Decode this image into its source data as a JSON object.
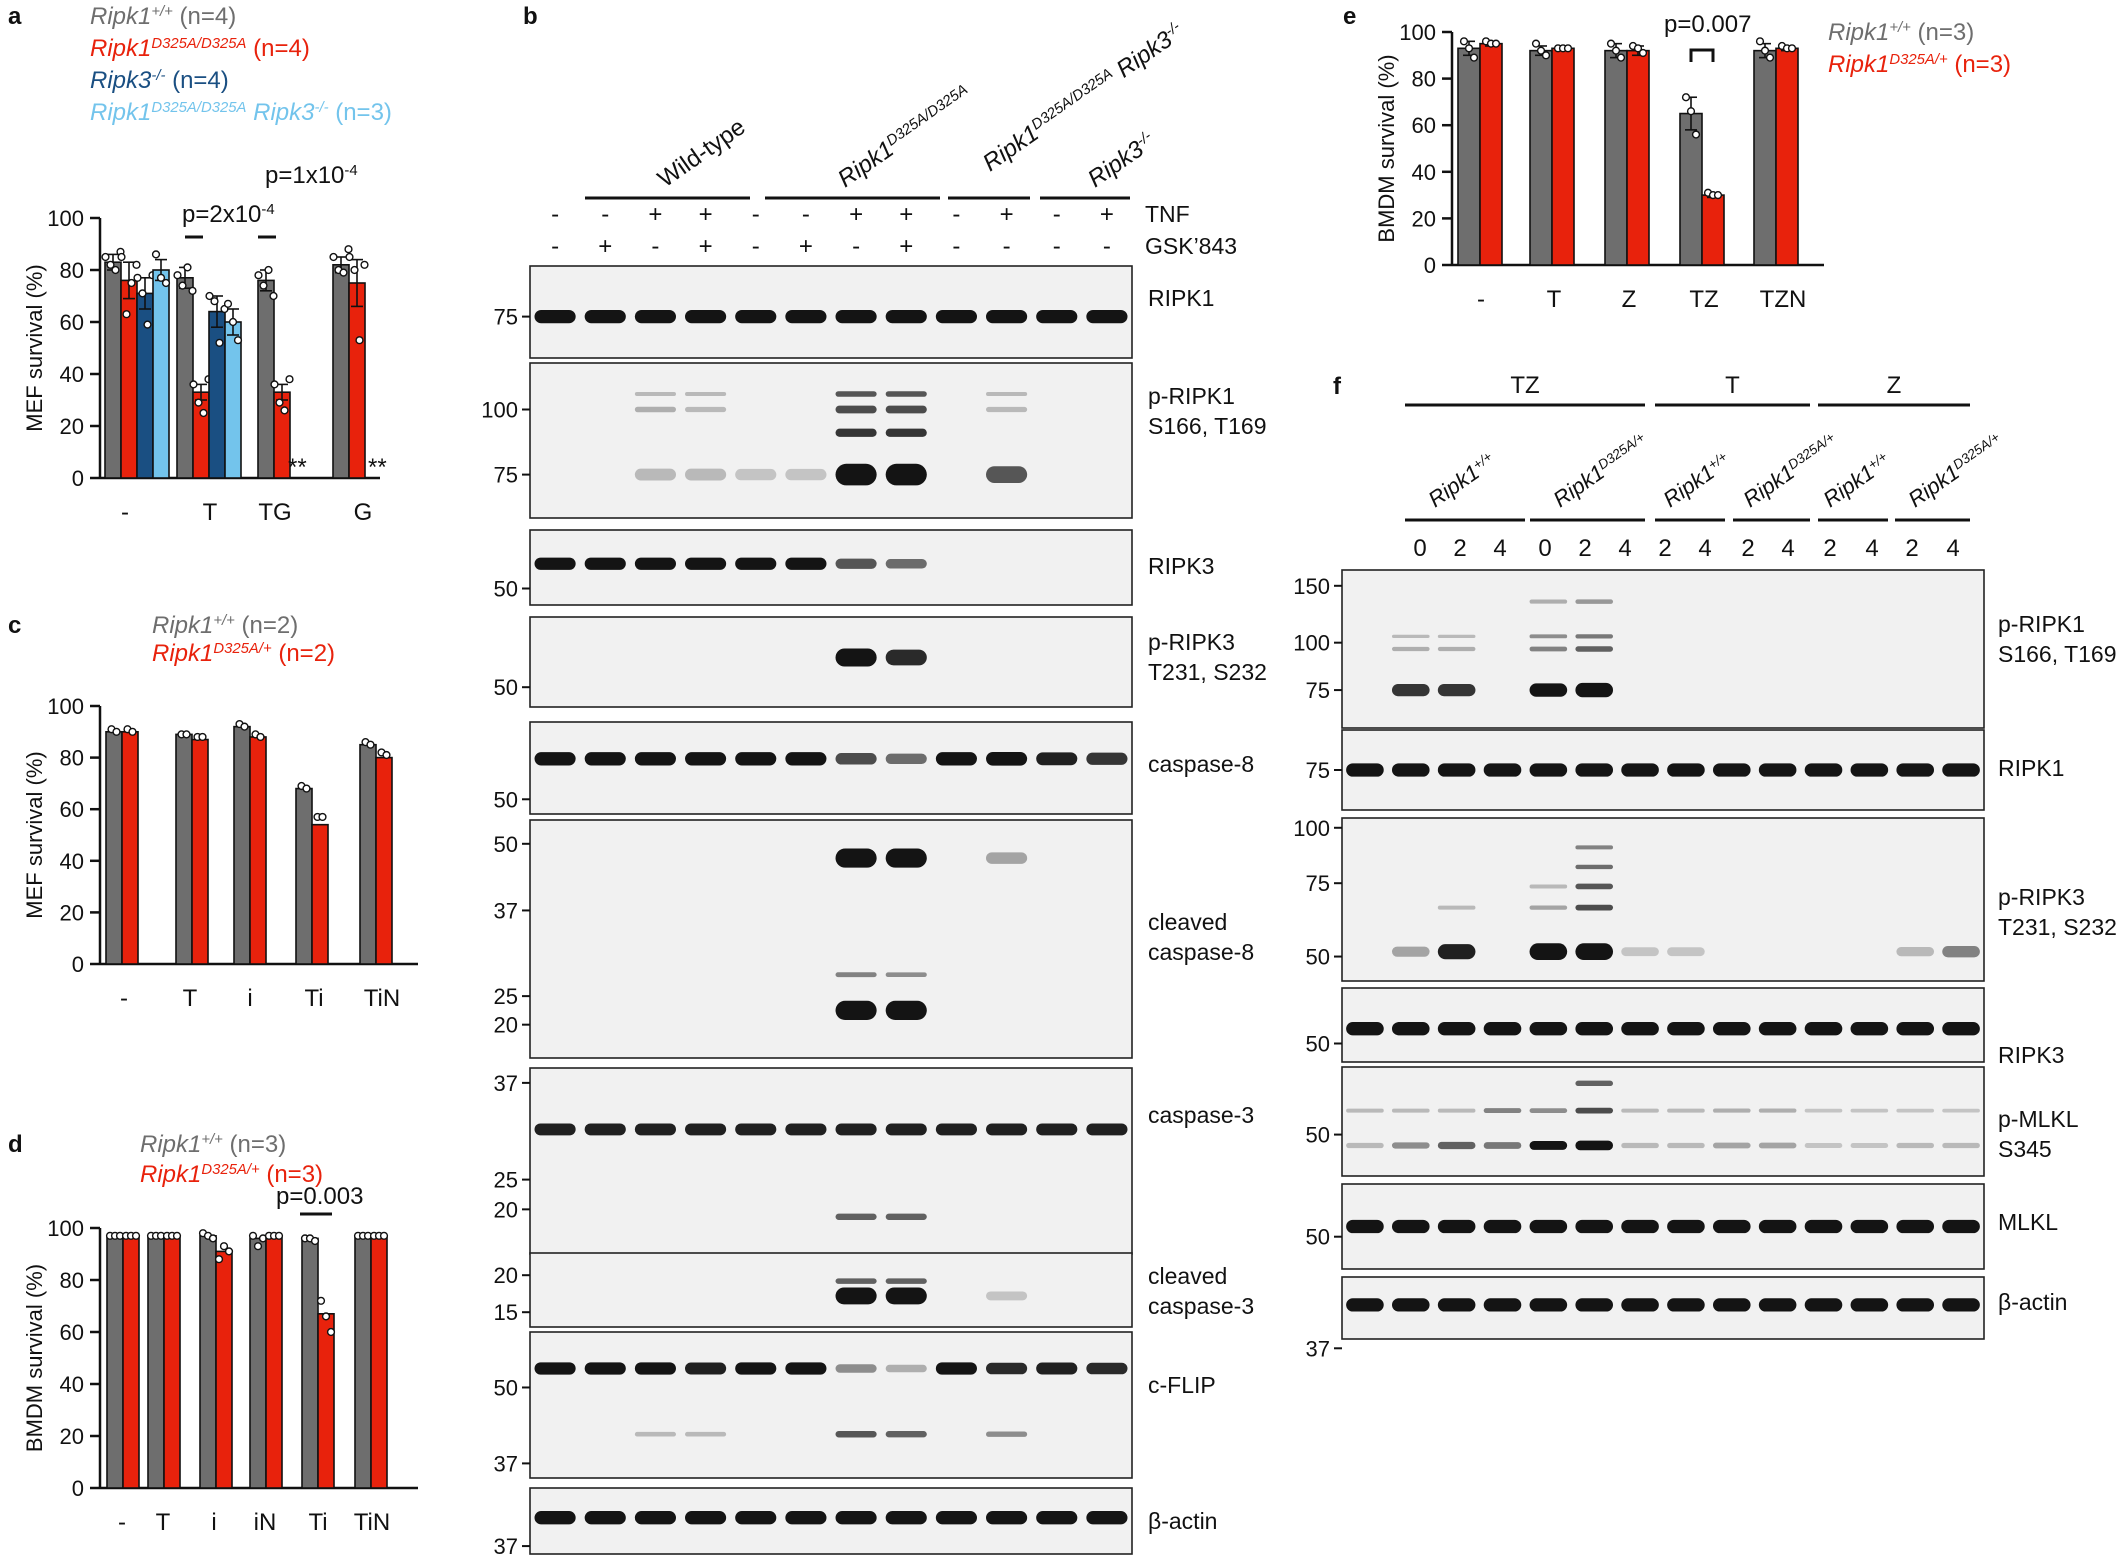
{
  "colors": {
    "wt": "#6e6e6e",
    "red": "#e8220c",
    "blue": "#1a4f82",
    "lightblue": "#73c4ec",
    "text": "#111111",
    "blot_bg": "#f1f1f1",
    "band": "#141414"
  },
  "panels": {
    "a": "a",
    "b": "b",
    "c": "c",
    "d": "d",
    "e": "e",
    "f": "f"
  },
  "chart_data": [
    {
      "id": "a",
      "type": "bar",
      "ylabel": "MEF survival (%)",
      "ylim": [
        0,
        100
      ],
      "yticks": [
        0,
        20,
        40,
        60,
        80,
        100
      ],
      "categories": [
        "-",
        "T",
        "TG",
        "G"
      ],
      "legend": [
        {
          "gene": "Ripk1",
          "sup": "+/+",
          "n": "(n=4)",
          "color": "wt"
        },
        {
          "gene": "Ripk1",
          "sup": "D325A/D325A",
          "n": "(n=4)",
          "color": "red"
        },
        {
          "gene": "Ripk3",
          "sup": "-/-",
          "n": "(n=4)",
          "color": "blue"
        },
        {
          "gene": "Ripk1",
          "sup": "D325A/D325A",
          "gene2": "Ripk3",
          "sup2": "-/-",
          "n": "(n=3)",
          "color": "lightblue"
        }
      ],
      "series": [
        {
          "name": "Ripk1+/+",
          "color": "wt",
          "values": [
            83,
            77,
            76,
            82
          ],
          "err": [
            3,
            4,
            4,
            3
          ],
          "points": [
            [
              85,
              82,
              80,
              87
            ],
            [
              78,
              74,
              81,
              72
            ],
            [
              78,
              74,
              80,
              70
            ],
            [
              85,
              80,
              79,
              88
            ]
          ]
        },
        {
          "name": "Ripk1 D325A/D325A",
          "color": "red",
          "values": [
            76,
            33,
            33,
            75
          ],
          "err": [
            7,
            3,
            3,
            9
          ],
          "points": [
            [
              85,
              63,
              75,
              82
            ],
            [
              36,
              29,
              25,
              38
            ],
            [
              36,
              29,
              26,
              38
            ],
            [
              85,
              80,
              53,
              82
            ]
          ]
        },
        {
          "name": "Ripk3-/-",
          "color": "blue",
          "values": [
            71,
            null,
            null,
            null
          ],
          "err": [
            6,
            null,
            null,
            null
          ],
          "points": [
            [
              77,
              71,
              59,
              78
            ],
            [],
            [],
            []
          ]
        },
        {
          "name": "Ripk1 D325A/D325A Ripk3-/-",
          "color": "lightblue",
          "values": [
            80,
            null,
            null,
            null
          ],
          "err": [
            4,
            null,
            null,
            null
          ],
          "points": [
            [
              86,
              77,
              75
            ],
            [],
            [],
            []
          ]
        }
      ],
      "extra_bars": [
        {
          "name": "Ripk3-/- T",
          "color": "blue",
          "value": 64,
          "err": 6,
          "points": [
            70,
            68,
            52,
            65
          ]
        },
        {
          "name": "DKO T",
          "color": "lightblue",
          "value": 60,
          "err": 5,
          "points": [
            67,
            60,
            53
          ]
        }
      ],
      "annotations": [
        {
          "text": "p=2x10",
          "sup": "-4",
          "between": "T"
        },
        {
          "text": "p=1x10",
          "sup": "-4",
          "between": "TG"
        },
        {
          "text": "**",
          "at": "TG"
        },
        {
          "text": "**",
          "at": "G"
        }
      ]
    },
    {
      "id": "c",
      "type": "bar",
      "ylabel": "MEF survival (%)",
      "ylim": [
        0,
        100
      ],
      "yticks": [
        0,
        20,
        40,
        60,
        80,
        100
      ],
      "categories": [
        "-",
        "T",
        "i",
        "Ti",
        "TiN"
      ],
      "legend": [
        {
          "gene": "Ripk1",
          "sup": "+/+",
          "n": "(n=2)",
          "color": "wt"
        },
        {
          "gene": "Ripk1",
          "sup": "D325A/+",
          "n": "(n=2)",
          "color": "red"
        }
      ],
      "series": [
        {
          "name": "Ripk1+/+",
          "color": "wt",
          "values": [
            90,
            89,
            92,
            68,
            85
          ],
          "points": [
            [
              91,
              90
            ],
            [
              89,
              89
            ],
            [
              93,
              92
            ],
            [
              69,
              68
            ],
            [
              86,
              85
            ]
          ]
        },
        {
          "name": "Ripk1 D325A/+",
          "color": "red",
          "values": [
            90,
            87,
            88,
            54,
            80
          ],
          "points": [
            [
              91,
              90
            ],
            [
              88,
              88
            ],
            [
              89,
              88
            ],
            [
              57,
              57
            ],
            [
              82,
              81
            ]
          ]
        }
      ]
    },
    {
      "id": "d",
      "type": "bar",
      "ylabel": "BMDM survival (%)",
      "ylim": [
        0,
        100
      ],
      "yticks": [
        0,
        20,
        40,
        60,
        80,
        100
      ],
      "categories": [
        "-",
        "T",
        "i",
        "iN",
        "Ti",
        "TiN"
      ],
      "legend": [
        {
          "gene": "Ripk1",
          "sup": "+/+",
          "n": "(n=3)",
          "color": "wt"
        },
        {
          "gene": "Ripk1",
          "sup": "D325A/+",
          "n": "(n=3)",
          "color": "red"
        }
      ],
      "series": [
        {
          "name": "Ripk1+/+",
          "color": "wt",
          "values": [
            97,
            97,
            97,
            96,
            96,
            97
          ],
          "points": [
            [
              97,
              97,
              97
            ],
            [
              97,
              97,
              97
            ],
            [
              98,
              97,
              96
            ],
            [
              97,
              93,
              96
            ],
            [
              96,
              96,
              95
            ],
            [
              97,
              97,
              97
            ]
          ]
        },
        {
          "name": "Ripk1 D325A/+",
          "color": "red",
          "values": [
            97,
            97,
            91,
            97,
            67,
            97
          ],
          "points": [
            [
              97,
              97,
              97
            ],
            [
              97,
              97,
              97
            ],
            [
              88,
              93,
              91
            ],
            [
              97,
              97,
              97
            ],
            [
              72,
              66,
              60
            ],
            [
              97,
              97,
              97
            ]
          ]
        }
      ],
      "annotations": [
        {
          "text": "p=0.003",
          "between": "Ti"
        }
      ]
    },
    {
      "id": "e",
      "type": "bar",
      "ylabel": "BMDM survival (%)",
      "ylim": [
        0,
        100
      ],
      "yticks": [
        0,
        20,
        40,
        60,
        80,
        100
      ],
      "categories": [
        "-",
        "T",
        "Z",
        "TZ",
        "TZN"
      ],
      "legend": [
        {
          "gene": "Ripk1",
          "sup": "+/+",
          "n": "(n=3)",
          "color": "wt"
        },
        {
          "gene": "Ripk1",
          "sup": "D325A/+",
          "n": "(n=3)",
          "color": "red"
        }
      ],
      "series": [
        {
          "name": "Ripk1+/+",
          "color": "wt",
          "values": [
            93,
            92,
            92,
            65,
            92
          ],
          "err": [
            3,
            2,
            3,
            7,
            3
          ],
          "points": [
            [
              96,
              93,
              89
            ],
            [
              95,
              92,
              90
            ],
            [
              95,
              92,
              89
            ],
            [
              72,
              66,
              56
            ],
            [
              96,
              92,
              89
            ]
          ]
        },
        {
          "name": "Ripk1 D325A/+",
          "color": "red",
          "values": [
            95,
            93,
            92,
            30,
            93
          ],
          "err": [
            1,
            1,
            2,
            1,
            1
          ],
          "points": [
            [
              96,
              95,
              95
            ],
            [
              93,
              93,
              93
            ],
            [
              94,
              93,
              91
            ],
            [
              31,
              30,
              30
            ],
            [
              94,
              93,
              93
            ]
          ]
        }
      ],
      "annotations": [
        {
          "text": "p=0.007",
          "between": "TZ"
        }
      ]
    }
  ],
  "blot_b": {
    "headers": [
      {
        "text": "Wild-type"
      },
      {
        "text": "Ripk1",
        "sup": "D325A/D325A"
      },
      {
        "text": "Ripk1",
        "sup": "D325A/D325A",
        "text2": " Ripk3",
        "sup2": "-/-"
      },
      {
        "text": "Ripk3",
        "sup": "-/-"
      }
    ],
    "tnf_label": "TNF",
    "gsk_label": "GSK’843",
    "tnf": [
      "-",
      "-",
      "+",
      "+",
      "-",
      "-",
      "+",
      "+",
      "-",
      "+",
      "-",
      "+"
    ],
    "gsk": [
      "-",
      "+",
      "-",
      "+",
      "-",
      "+",
      "-",
      "+",
      "-",
      "-",
      "-",
      "-"
    ],
    "panels": [
      {
        "label": "RIPK1",
        "markers": [
          "75"
        ],
        "mw_pos": [
          0.55
        ]
      },
      {
        "label": "p-RIPK1\nS166, T169",
        "markers": [
          "100",
          "75"
        ],
        "mw_pos": [
          0.3,
          0.72
        ]
      },
      {
        "label": "RIPK3",
        "markers": [
          "50"
        ],
        "mw_pos": [
          0.78
        ]
      },
      {
        "label": "p-RIPK3\nT231, S232",
        "markers": [
          "50"
        ],
        "mw_pos": [
          0.78
        ]
      },
      {
        "label": "caspase-8",
        "markers": [
          "50"
        ],
        "mw_pos": [
          0.84
        ]
      },
      {
        "label": "cleaved\ncaspase-8",
        "markers": [
          "50",
          "37",
          "25",
          "20"
        ],
        "mw_pos": [
          0.1,
          0.38,
          0.74,
          0.86
        ]
      },
      {
        "label": "caspase-3",
        "markers": [
          "37",
          "25",
          "20"
        ],
        "mw_pos": [
          0.08,
          0.6,
          0.76
        ]
      },
      {
        "label": "cleaved\ncaspase-3",
        "markers": [
          "20",
          "15"
        ],
        "mw_pos": [
          0.3,
          0.8
        ]
      },
      {
        "label": "c-FLIP",
        "markers": [
          "50",
          "37"
        ],
        "mw_pos": [
          0.38,
          0.9
        ]
      },
      {
        "label": "β-actin",
        "markers": [
          "37"
        ],
        "mw_pos": [
          0.88
        ]
      }
    ]
  },
  "blot_f": {
    "groups": [
      {
        "text": "TZ"
      },
      {
        "text": "T"
      },
      {
        "text": "Z"
      }
    ],
    "genotypes": [
      {
        "text": "Ripk1",
        "sup": "+/+"
      },
      {
        "text": "Ripk1",
        "sup": "D325A/+"
      },
      {
        "text": "Ripk1",
        "sup": "+/+"
      },
      {
        "text": "Ripk1",
        "sup": "D325A/+"
      },
      {
        "text": "Ripk1",
        "sup": "+/+"
      },
      {
        "text": "Ripk1",
        "sup": "D325A/+"
      }
    ],
    "times": [
      "0",
      "2",
      "4",
      "0",
      "2",
      "4",
      "2",
      "4",
      "2",
      "4",
      "2",
      "4",
      "2",
      "4"
    ],
    "panels": [
      {
        "label": "p-RIPK1\nS166, T169",
        "markers": [
          "150",
          "100",
          "75"
        ],
        "mw_pos": [
          0.1,
          0.46,
          0.76
        ]
      },
      {
        "label": "RIPK1",
        "markers": [
          "75"
        ],
        "mw_pos": [
          0.5
        ]
      },
      {
        "label": "p-RIPK3\nT231, S232",
        "markers": [
          "100",
          "75",
          "50"
        ],
        "mw_pos": [
          0.06,
          0.4,
          0.85
        ]
      },
      {
        "label": "RIPK3",
        "markers": [
          "50"
        ],
        "mw_pos": [
          0.75
        ]
      },
      {
        "label": "p-MLKL\nS345",
        "markers": [
          "50"
        ],
        "mw_pos": [
          0.62
        ]
      },
      {
        "label": "MLKL",
        "markers": [
          "50"
        ],
        "mw_pos": [
          0.62
        ]
      },
      {
        "label": "β-actin",
        "markers": [
          "37"
        ],
        "mw_pos": [
          1.15
        ]
      }
    ]
  }
}
